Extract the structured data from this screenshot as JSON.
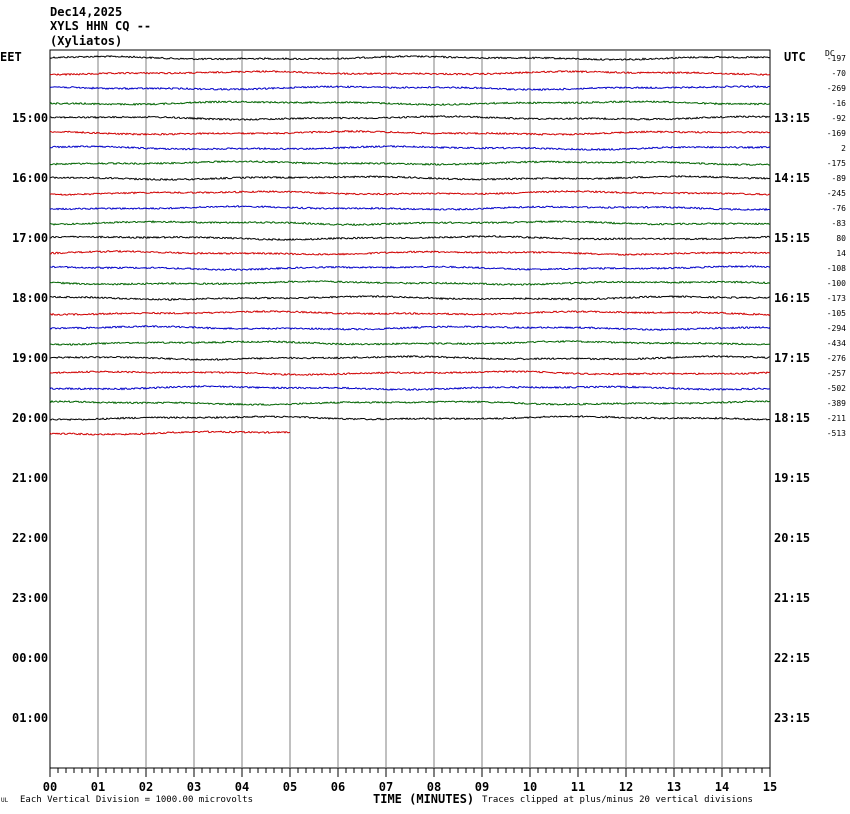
{
  "header": {
    "date": "Dec14,2025",
    "station": "XYLS HHN CQ --",
    "location": "(Xyliatos)"
  },
  "footer": {
    "scale_note": "Each Vertical Division = 1000.00 microvolts",
    "xlabel": "TIME (MINUTES)",
    "clip_note": "Traces clipped at plus/minus 20 vertical divisions",
    "corner_mark": "UL"
  },
  "chart_data": {
    "type": "line",
    "title": "",
    "xlabel": "TIME (MINUTES)",
    "x_ticks": [
      "00",
      "01",
      "02",
      "03",
      "04",
      "05",
      "06",
      "07",
      "08",
      "09",
      "10",
      "11",
      "12",
      "13",
      "14",
      "15"
    ],
    "xlim": [
      0,
      15
    ],
    "left_axis_title": "EET",
    "right_axis_title": "UTC",
    "dc_title": "DC",
    "left_hour_labels": [
      "15:00",
      "16:00",
      "17:00",
      "18:00",
      "19:00",
      "20:00",
      "21:00",
      "22:00",
      "23:00",
      "00:00",
      "01:00"
    ],
    "right_hour_labels": [
      "13:15",
      "14:15",
      "15:15",
      "16:15",
      "17:15",
      "18:15",
      "19:15",
      "20:15",
      "21:15",
      "22:15",
      "23:15"
    ],
    "trace_colors": [
      "#000000",
      "#d00000",
      "#0000c8",
      "#006400"
    ],
    "dc_offsets": [
      "-197",
      "-70",
      "-269",
      "-16",
      "-92",
      "-169",
      "2",
      "-175",
      "-89",
      "-245",
      "-76",
      "-83",
      "80",
      "14",
      "-108",
      "-100",
      "-173",
      "-105",
      "-294",
      "-434",
      "-276",
      "-257",
      "-502",
      "-389",
      "-211",
      "-513"
    ],
    "last_trace_end_minute": 5,
    "grid": true
  }
}
